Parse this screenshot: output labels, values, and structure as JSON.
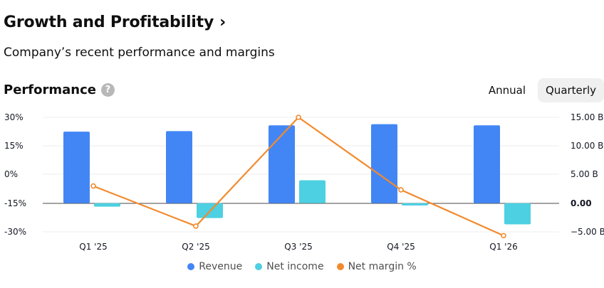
{
  "header": {
    "title": "Growth and Profitability",
    "chevron": "›",
    "subtitle": "Company’s recent performance and margins"
  },
  "performance": {
    "label": "Performance",
    "help_glyph": "?",
    "toggle": {
      "annual_label": "Annual",
      "quarterly_label": "Quarterly",
      "selected": "Quarterly"
    }
  },
  "chart_data": {
    "type": "bar",
    "categories": [
      "Q1 '25",
      "Q2 '25",
      "Q3 '25",
      "Q4 '25",
      "Q1 '26"
    ],
    "series": [
      {
        "name": "Revenue",
        "axis": "right",
        "color": "#4286f5",
        "values": [
          12.5,
          12.6,
          13.6,
          13.8,
          13.6
        ]
      },
      {
        "name": "Net income",
        "axis": "right",
        "color": "#4dd0e1",
        "values": [
          -0.6,
          -2.6,
          4.0,
          -0.4,
          -3.7
        ]
      },
      {
        "name": "Net margin %",
        "axis": "left",
        "type": "line",
        "color": "#f28a2d",
        "values": [
          -6,
          -27,
          30,
          -8,
          -32
        ]
      }
    ],
    "left_axis": {
      "ticks": [
        "30%",
        "15%",
        "0%",
        "-15%",
        "-30%"
      ],
      "ylim": [
        -30,
        30
      ]
    },
    "right_axis": {
      "ticks": [
        "15.00 B",
        "10.00 B",
        "5.00 B",
        "0.00",
        "−5.00 B"
      ],
      "ylim": [
        -5,
        15
      ]
    },
    "legend_position": "bottom-center"
  }
}
